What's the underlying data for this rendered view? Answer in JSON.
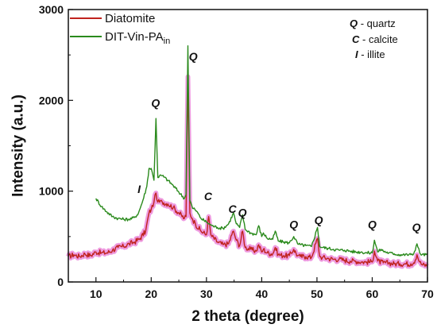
{
  "chart_data": {
    "type": "line",
    "xlabel": "2 theta (degree)",
    "ylabel": "Intensity (a.u.)",
    "xlim": [
      5,
      70
    ],
    "ylim": [
      0,
      3000
    ],
    "x_ticks": [
      10,
      20,
      30,
      40,
      50,
      60,
      70
    ],
    "y_ticks": [
      0,
      1000,
      2000,
      3000
    ],
    "grid": false,
    "legend": {
      "placement": "top-left",
      "entries": [
        {
          "label": "Diatomite",
          "color": "#c0231e"
        },
        {
          "label_main": "DIT-Vin-PA",
          "label_sub": "in",
          "color": "#2a8a1c"
        }
      ]
    },
    "phase_key": [
      {
        "symbol": "Q",
        "text": " - quartz"
      },
      {
        "symbol": "C",
        "text": " - calcite"
      },
      {
        "symbol": "I",
        "text": " - illite"
      }
    ],
    "peak_labels": [
      {
        "text": "I",
        "x": 17.8,
        "y": 980
      },
      {
        "text": "Q",
        "x": 20.8,
        "y": 1930
      },
      {
        "text": "Q",
        "x": 27.6,
        "y": 2440
      },
      {
        "text": "C",
        "x": 30.3,
        "y": 900
      },
      {
        "text": "C",
        "x": 34.7,
        "y": 760
      },
      {
        "text": "Q",
        "x": 36.5,
        "y": 720
      },
      {
        "text": "Q",
        "x": 45.8,
        "y": 590
      },
      {
        "text": "Q",
        "x": 50.3,
        "y": 640
      },
      {
        "text": "Q",
        "x": 60.0,
        "y": 590
      },
      {
        "text": "Q",
        "x": 68.0,
        "y": 560
      }
    ],
    "series": [
      {
        "name": "Diatomite",
        "color": "#c0231e",
        "band_color": "#e87ad6",
        "x": [
          5,
          6,
          7,
          8,
          9,
          10,
          11,
          12,
          13,
          14,
          15,
          16,
          17,
          18,
          19,
          19.6,
          20,
          20.5,
          20.86,
          21.2,
          22,
          23,
          24,
          25,
          26,
          26.3,
          26.64,
          27,
          27.5,
          28,
          29,
          30,
          30.4,
          30.8,
          31,
          32,
          33,
          34,
          34.6,
          34.9,
          35.4,
          36,
          36.54,
          37,
          38,
          39,
          39.45,
          40,
          40.3,
          41,
          42,
          42.45,
          43,
          44,
          45,
          45.8,
          46.5,
          47,
          48,
          49,
          50.1,
          50.5,
          51,
          52,
          53,
          54,
          55,
          56,
          57,
          58,
          59,
          60,
          60.4,
          61,
          62,
          63,
          64,
          65,
          66,
          67,
          67.5,
          68.1,
          68.6,
          69,
          70
        ],
        "y": [
          280,
          300,
          280,
          310,
          290,
          330,
          320,
          320,
          350,
          380,
          390,
          420,
          440,
          480,
          560,
          760,
          800,
          880,
          980,
          880,
          880,
          860,
          820,
          760,
          700,
          720,
          2260,
          760,
          690,
          640,
          560,
          520,
          720,
          520,
          500,
          440,
          410,
          420,
          520,
          560,
          460,
          400,
          560,
          380,
          360,
          340,
          410,
          330,
          360,
          320,
          310,
          380,
          300,
          290,
          290,
          360,
          290,
          280,
          280,
          270,
          480,
          280,
          270,
          260,
          250,
          250,
          240,
          230,
          230,
          220,
          220,
          220,
          340,
          230,
          210,
          210,
          200,
          200,
          200,
          200,
          210,
          300,
          220,
          190,
          180
        ]
      },
      {
        "name": "DIT-Vin-PAin",
        "color": "#2a8a1c",
        "x": [
          10,
          11,
          12,
          13,
          14,
          15,
          16,
          17,
          17.7,
          18.5,
          19.2,
          19.6,
          20,
          20.5,
          20.86,
          21.2,
          21.5,
          22,
          23,
          24,
          25,
          26,
          26.3,
          26.64,
          27,
          27.5,
          27.9,
          28.2,
          29,
          30,
          30.5,
          31,
          32,
          33,
          34,
          34.9,
          35.4,
          36,
          36.54,
          37,
          38,
          39,
          39.45,
          40,
          40.3,
          41,
          42,
          42.45,
          43,
          44,
          45,
          45.8,
          46.5,
          47,
          48,
          49,
          50.1,
          50.5,
          51,
          52,
          53,
          54,
          55,
          56,
          57,
          58,
          59,
          60,
          60.4,
          61,
          61.6,
          62,
          63,
          64,
          65,
          66,
          67,
          67.5,
          68.1,
          68.6,
          69,
          70
        ],
        "y": [
          920,
          830,
          770,
          720,
          700,
          690,
          690,
          710,
          760,
          900,
          1050,
          1250,
          1250,
          1120,
          1800,
          1150,
          1170,
          1170,
          1120,
          1060,
          990,
          920,
          960,
          2600,
          900,
          810,
          800,
          780,
          700,
          660,
          640,
          620,
          600,
          590,
          640,
          760,
          640,
          600,
          740,
          580,
          540,
          520,
          620,
          500,
          540,
          480,
          470,
          560,
          450,
          440,
          430,
          500,
          420,
          410,
          400,
          390,
          600,
          390,
          380,
          370,
          360,
          350,
          350,
          340,
          330,
          330,
          320,
          320,
          460,
          330,
          360,
          340,
          320,
          310,
          300,
          300,
          300,
          310,
          420,
          320,
          300,
          300
        ]
      }
    ]
  }
}
